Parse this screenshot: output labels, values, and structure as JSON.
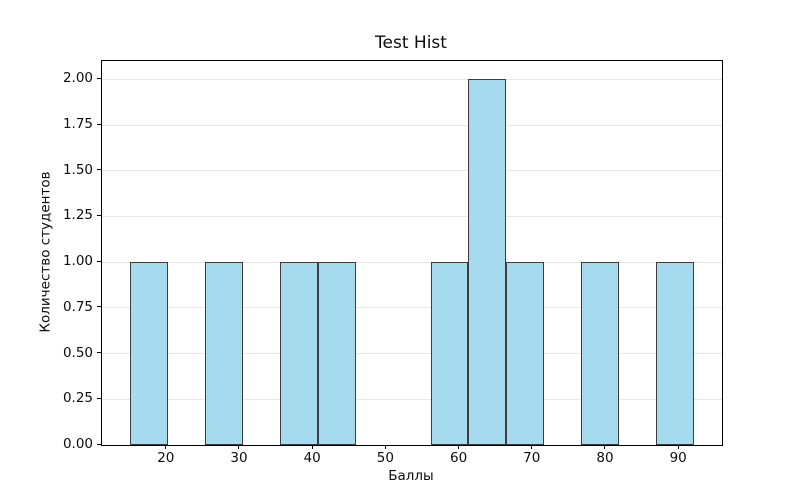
{
  "chart_data": {
    "type": "bar",
    "subtype": "histogram",
    "title": "Test Hist",
    "xlabel": "Баллы",
    "ylabel": "Количество студентов",
    "n_bins": 15,
    "data_range": [
      15,
      92
    ],
    "bin_edges": [
      15,
      20.13,
      25.27,
      30.4,
      35.53,
      40.67,
      45.8,
      50.93,
      56.07,
      61.2,
      66.33,
      71.47,
      76.6,
      81.73,
      86.87,
      92
    ],
    "counts": [
      1,
      0,
      1,
      0,
      1,
      1,
      0,
      0,
      1,
      2,
      1,
      0,
      1,
      0,
      1
    ],
    "xlim": [
      11.15,
      95.85
    ],
    "ylim": [
      0,
      2.1
    ],
    "xticks": [
      {
        "value": 20,
        "label": "20"
      },
      {
        "value": 30,
        "label": "30"
      },
      {
        "value": 40,
        "label": "40"
      },
      {
        "value": 50,
        "label": "50"
      },
      {
        "value": 60,
        "label": "60"
      },
      {
        "value": 70,
        "label": "70"
      },
      {
        "value": 80,
        "label": "80"
      },
      {
        "value": 90,
        "label": "90"
      }
    ],
    "yticks": [
      {
        "value": 0,
        "label": "0.00"
      },
      {
        "value": 0.25,
        "label": "0.25"
      },
      {
        "value": 0.5,
        "label": "0.50"
      },
      {
        "value": 0.75,
        "label": "0.75"
      },
      {
        "value": 1,
        "label": "1.00"
      },
      {
        "value": 1.25,
        "label": "1.25"
      },
      {
        "value": 1.5,
        "label": "1.50"
      },
      {
        "value": 1.75,
        "label": "1.75"
      },
      {
        "value": 2,
        "label": "2.00"
      }
    ],
    "grid": "y",
    "legend": "none",
    "colors": {
      "bar_fill": "#a6daef",
      "bar_edge": "#3d3d3d",
      "grid": "#e7e7e7",
      "spine": "#000000",
      "text": "#0d0d0d",
      "background": "#ffffff"
    }
  }
}
